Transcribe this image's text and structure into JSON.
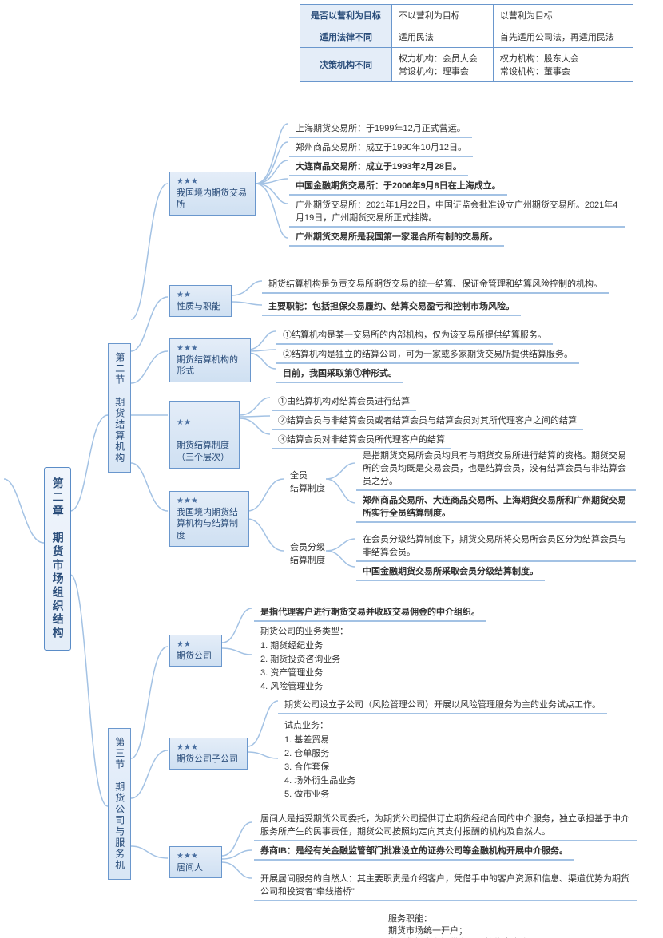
{
  "connector_color": "#a3c2e4",
  "chapter": {
    "title": "第二章　期货市场组织结构"
  },
  "sections": {
    "s2": {
      "title": "第二节　期货结算机构"
    },
    "s3": {
      "title": "第三节　期货公司与服务机"
    }
  },
  "table": {
    "rows": [
      {
        "h": "是否以营利为目标",
        "c1": "不以营利为目标",
        "c2": "以营利为目标"
      },
      {
        "h": "适用法律不同",
        "c1": "适用民法",
        "c2": "首先适用公司法，再适用民法"
      },
      {
        "h": "决策机构不同",
        "c1": "权力机构：会员大会\n常设机构：理事会",
        "c2": "权力机构：股东大会\n常设机构：董事会"
      }
    ]
  },
  "domestic_exchanges": {
    "stars": "★★★",
    "label": "我国境内期货交易所",
    "items": [
      {
        "t": "上海期货交易所：于1999年12月正式营运。",
        "b": false
      },
      {
        "t": "郑州商品交易所：成立于1990年10月12日。",
        "b": false
      },
      {
        "t": "大连商品交易所：成立于1993年2月28日。",
        "b": true
      },
      {
        "t": "中国金融期货交易所：于2006年9月8日在上海成立。",
        "b": true
      },
      {
        "t": "广州期货交易所：2021年1月22日，中国证监会批准设立广州期货交易所。2021年4月19日，广州期货交易所正式挂牌。",
        "b": false
      },
      {
        "t": "广州期货交易所是我国第一家混合所有制的交易所。",
        "b": true
      }
    ]
  },
  "clearing": {
    "nature": {
      "stars": "★★",
      "label": "性质与职能",
      "items": [
        {
          "t": "期货结算机构是负责交易所期货交易的统一结算、保证金管理和结算风险控制的机构。",
          "b": false
        },
        {
          "t": "主要职能：包括担保交易履约、结算交易盈亏和控制市场风险。",
          "b": true
        }
      ]
    },
    "forms": {
      "stars": "★★★",
      "label": "期货结算机构的形式",
      "items": [
        {
          "t": "①结算机构是某一交易所的内部机构，仅为该交易所提供结算服务。",
          "b": false
        },
        {
          "t": "②结算机构是独立的结算公司，可为一家或多家期货交易所提供结算服务。",
          "b": false
        },
        {
          "t": "目前，我国采取第①种形式。",
          "b": true
        }
      ]
    },
    "system": {
      "stars": "★★",
      "label": "期货结算制度\n（三个层次）",
      "items": [
        {
          "t": "①由结算机构对结算会员进行结算",
          "b": false
        },
        {
          "t": "②结算会员与非结算会员或者结算会员与结算会员对其所代理客户之间的结算",
          "b": false
        },
        {
          "t": "③结算会员对非结算会员所代理客户的结算",
          "b": false
        }
      ]
    },
    "domestic": {
      "stars": "★★★",
      "label": "我国境内期货结算机构与结算制度",
      "full": {
        "label": "全员\n结算制度",
        "items": [
          {
            "t": "是指期货交易所会员均具有与期货交易所进行结算的资格。期货交易所的会员均既是交易会员，也是结算会员，没有结算会员与非结算会员之分。",
            "b": false
          },
          {
            "t": "郑州商品交易所、大连商品交易所、上海期货交易所和广州期货交易所实行全员结算制度。",
            "b": true
          }
        ]
      },
      "tiered": {
        "label": "会员分级\n结算制度",
        "items": [
          {
            "t": "在会员分级结算制度下，期货交易所将交易所会员区分为结算会员与非结算会员。",
            "b": false
          },
          {
            "t": "中国金融期货交易所采取会员分级结算制度。",
            "b": true
          }
        ]
      }
    }
  },
  "futures_co": {
    "co": {
      "stars": "★★",
      "label": "期货公司",
      "intro": {
        "t": "是指代理客户进行期货交易并收取交易佣金的中介组织。",
        "b": true
      },
      "list_title": "期货公司的业务类型：",
      "list": [
        "1. 期货经纪业务",
        "2. 期货投资咨询业务",
        "3. 资产管理业务",
        "4. 风险管理业务"
      ]
    },
    "sub": {
      "stars": "★★★",
      "label": "期货公司子公司",
      "intro": {
        "t": "期货公司设立子公司（风险管理公司）开展以风险管理服务为主的业务试点工作。",
        "b": false
      },
      "list_title": "试点业务：",
      "list": [
        "1. 基差贸易",
        "2. 仓单服务",
        "3. 合作套保",
        "4. 场外衍生品业务",
        "5. 做市业务"
      ]
    },
    "intermediary": {
      "stars": "★★★",
      "label": "居间人",
      "items": [
        {
          "t": "居间人是指受期货公司委托，为期货公司提供订立期货经纪合同的中介服务，独立承担基于中介服务所产生的民事责任，期货公司按照约定向其支付报酬的机构及自然人。",
          "b": false
        },
        {
          "t": "券商IB：是经有关金融监管部门批准设立的证券公司等金融机构开展中介服务。",
          "b": true
        },
        {
          "t": "开展居间服务的自然人：其主要职责是介绍客户，凭借手中的客户资源和信息、渠道优势为期货公司和投资者\"牵线搭桥\"",
          "b": false
        }
      ],
      "tail": [
        "服务职能：",
        "期货市场统一开户；",
        "为期货投资者提供交易结算信息查询；"
      ]
    }
  }
}
